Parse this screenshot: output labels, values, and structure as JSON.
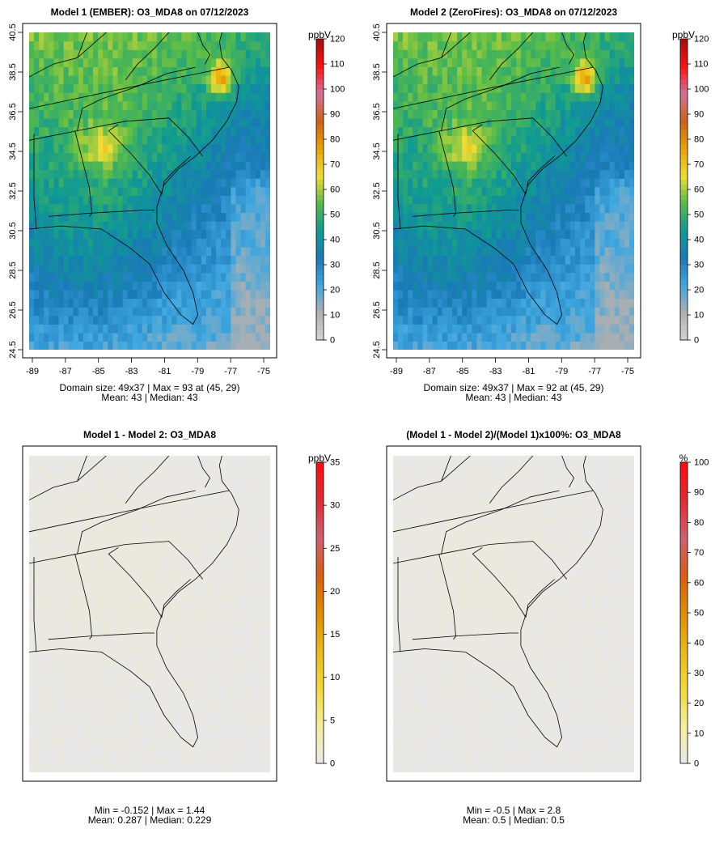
{
  "panels": [
    {
      "title": "Model 1 (EMBER): O3_MDA8 on 07/12/2023",
      "unit": "ppbV",
      "stats_line1": "Domain size: 49x37 | Max = 93 at (45, 29)",
      "stats_line2": "Mean: 43 |  Median: 43",
      "show_axes": true
    },
    {
      "title": "Model 2 (ZeroFires): O3_MDA8 on 07/12/2023",
      "unit": "ppbV",
      "stats_line1": "Domain size: 49x37 | Max = 92 at (45, 29)",
      "stats_line2": "Mean: 43 |  Median: 43",
      "show_axes": true
    },
    {
      "title": "Model 1 - Model 2: O3_MDA8",
      "unit": "ppbV",
      "stats_line1": "Min = -0.152 | Max = 1.44",
      "stats_line2": "Mean: 0.287 |  Median: 0.229",
      "show_axes": false
    },
    {
      "title": "(Model 1 - Model 2)/(Model 1)x100%: O3_MDA8",
      "unit": "%",
      "stats_line1": "Min = -0.5 | Max = 2.8",
      "stats_line2": "Mean: 0.5 |  Median: 0.5",
      "show_axes": false
    }
  ],
  "chart_data": [
    {
      "type": "heatmap",
      "title": "Model 1 (EMBER): O3_MDA8 on 07/12/2023",
      "grid_size": [
        49,
        37
      ],
      "x_ticks": [
        "-89",
        "-87",
        "-85",
        "-83",
        "-81",
        "-79",
        "-77",
        "-75"
      ],
      "y_ticks": [
        "24.5",
        "26.5",
        "28.5",
        "30.5",
        "32.5",
        "34.5",
        "36.5",
        "38.5",
        "40.5"
      ],
      "xlim": [
        -89,
        -75
      ],
      "ylim": [
        24.5,
        40.5
      ],
      "colorbar": {
        "unit": "ppbV",
        "range": [
          0,
          120
        ],
        "ticks": [
          "0",
          "10",
          "20",
          "30",
          "40",
          "50",
          "60",
          "70",
          "80",
          "90",
          "100",
          "110",
          "120"
        ]
      },
      "max": 93,
      "max_at": [
        45,
        29
      ],
      "mean": 43,
      "median": 43
    },
    {
      "type": "heatmap",
      "title": "Model 2 (ZeroFires): O3_MDA8 on 07/12/2023",
      "grid_size": [
        49,
        37
      ],
      "x_ticks": [
        "-89",
        "-87",
        "-85",
        "-83",
        "-81",
        "-79",
        "-77",
        "-75"
      ],
      "y_ticks": [
        "24.5",
        "26.5",
        "28.5",
        "30.5",
        "32.5",
        "34.5",
        "36.5",
        "38.5",
        "40.5"
      ],
      "xlim": [
        -89,
        -75
      ],
      "ylim": [
        24.5,
        40.5
      ],
      "colorbar": {
        "unit": "ppbV",
        "range": [
          0,
          120
        ],
        "ticks": [
          "0",
          "10",
          "20",
          "30",
          "40",
          "50",
          "60",
          "70",
          "80",
          "90",
          "100",
          "110",
          "120"
        ]
      },
      "max": 92,
      "max_at": [
        45,
        29
      ],
      "mean": 43,
      "median": 43
    },
    {
      "type": "heatmap",
      "title": "Model 1 - Model 2: O3_MDA8",
      "colorbar": {
        "unit": "ppbV",
        "range": [
          0,
          35
        ],
        "ticks": [
          "0",
          "5",
          "10",
          "15",
          "20",
          "25",
          "30",
          "35"
        ]
      },
      "min": -0.152,
      "max": 1.44,
      "mean": 0.287,
      "median": 0.229
    },
    {
      "type": "heatmap",
      "title": "(Model 1 - Model 2)/(Model 1)x100%: O3_MDA8",
      "colorbar": {
        "unit": "%",
        "range": [
          0,
          100
        ],
        "ticks": [
          "0",
          "10",
          "20",
          "30",
          "40",
          "50",
          "60",
          "70",
          "80",
          "90",
          "100"
        ]
      },
      "min": -0.5,
      "max": 2.8,
      "mean": 0.5,
      "median": 0.5
    }
  ],
  "colors": {
    "abs_scale": [
      "#d4d4d4",
      "#b0b0b0",
      "#3fa7e0",
      "#1a79b7",
      "#0f9a93",
      "#56bb49",
      "#f1dc35",
      "#e8a300",
      "#d25f16",
      "#d3719c",
      "#ff1010",
      "#a01010"
    ],
    "diff_scale": [
      "#e8e8e8",
      "#f6ee9a",
      "#f2d93a",
      "#eab817",
      "#e48d00",
      "#d85e10",
      "#d0606f",
      "#e02a35",
      "#ff0a0a"
    ],
    "background_grey": "#e6e6e6"
  }
}
